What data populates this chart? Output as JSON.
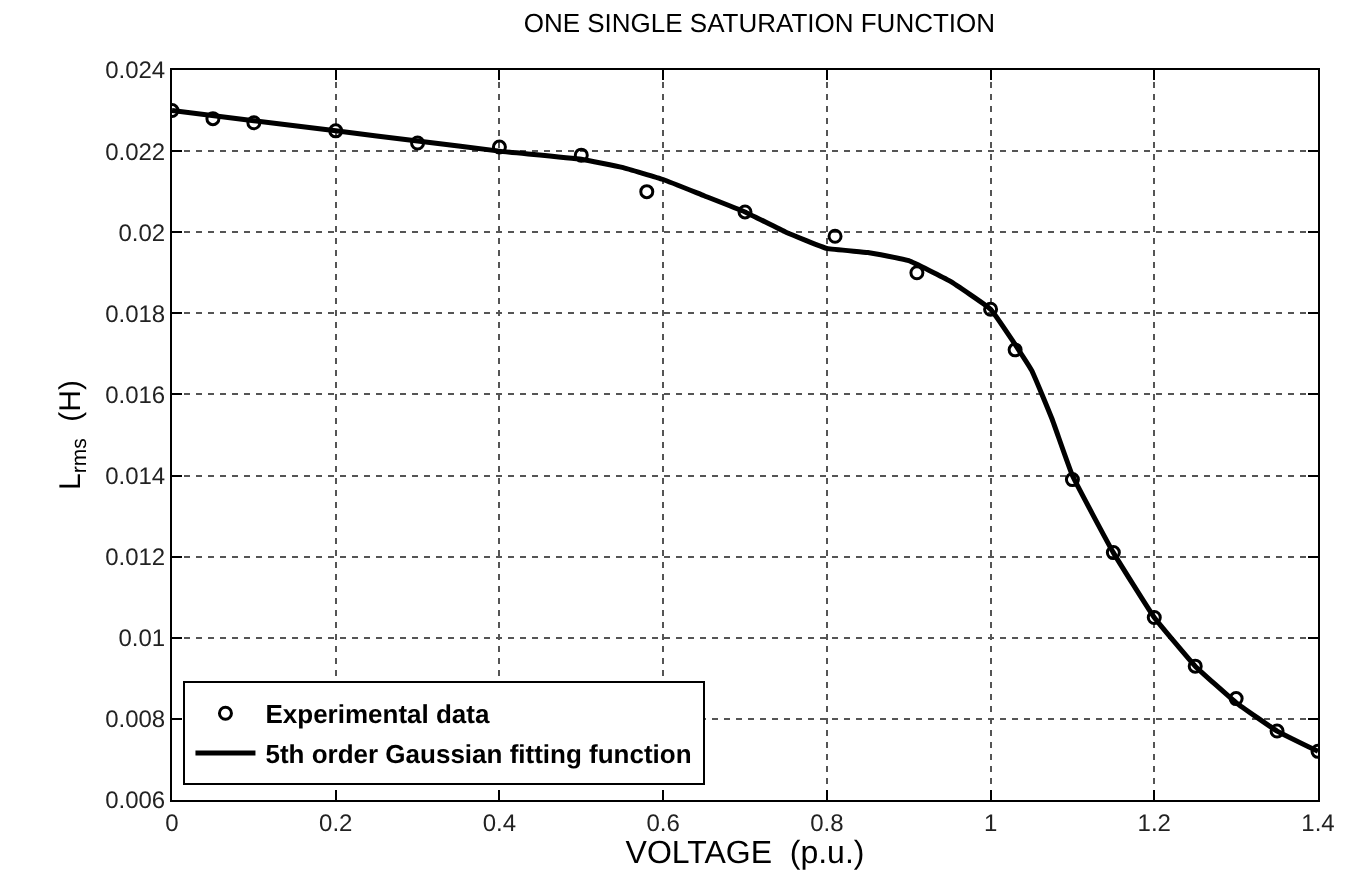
{
  "chart_data": {
    "type": "scatter",
    "title": "ONE SINGLE SATURATION FUNCTION",
    "xlabel": "VOLTAGE  (p.u.)",
    "ylabel": "L$_{rms}$  (H)",
    "xlim": [
      0,
      1.4
    ],
    "xticks": [
      0,
      0.2,
      0.4,
      0.6,
      0.8,
      1,
      1.2,
      1.4
    ],
    "ylim": [
      0.006,
      0.024
    ],
    "yticks": [
      0.006,
      0.008,
      0.01,
      0.012,
      0.014,
      0.016,
      0.018,
      0.02,
      0.022,
      0.024
    ],
    "grid": true,
    "legend": "bottom left",
    "series": [
      {
        "name": "Experimental data",
        "marker": "circle",
        "color": "#000000",
        "x": [
          0,
          0.05,
          0.1,
          0.2,
          0.3,
          0.4,
          0.5,
          0.58,
          0.7,
          0.81,
          0.91,
          1.0,
          1.03,
          1.1,
          1.15,
          1.2,
          1.25,
          1.3,
          1.35,
          1.4
        ],
        "values": [
          0.023,
          0.0228,
          0.0227,
          0.0225,
          0.0222,
          0.0221,
          0.0219,
          0.021,
          0.0205,
          0.0199,
          0.019,
          0.0181,
          0.0171,
          0.0139,
          0.0121,
          0.0105,
          0.0093,
          0.0085,
          0.0077,
          0.0072
        ]
      },
      {
        "name": "5th order Gaussian fitting function",
        "type": "line",
        "line_style": "solid",
        "color": "#000000",
        "x": [
          0,
          0.1,
          0.2,
          0.3,
          0.4,
          0.5,
          0.55,
          0.6,
          0.65,
          0.7,
          0.75,
          0.8,
          0.85,
          0.9,
          0.95,
          1.0,
          1.05,
          1.075,
          1.1,
          1.15,
          1.2,
          1.25,
          1.3,
          1.35,
          1.4
        ],
        "values": [
          0.023,
          0.02275,
          0.0225,
          0.02225,
          0.022,
          0.0218,
          0.0216,
          0.0213,
          0.0209,
          0.0205,
          0.02,
          0.0196,
          0.0195,
          0.0193,
          0.0188,
          0.0181,
          0.0166,
          0.0154,
          0.014,
          0.0121,
          0.0105,
          0.0093,
          0.0084,
          0.0077,
          0.0072
        ]
      }
    ]
  }
}
